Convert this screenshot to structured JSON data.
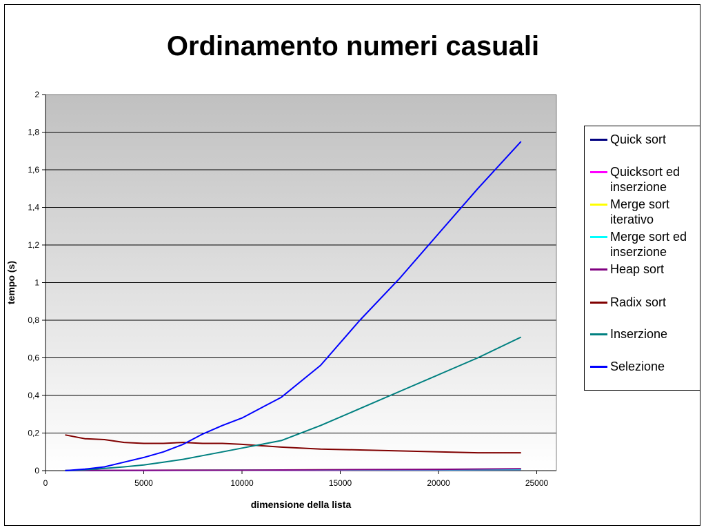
{
  "chart_data": {
    "type": "line",
    "title": "Ordinamento numeri casuali",
    "xlabel": "dimensione della lista",
    "ylabel": "tempo (s)",
    "xlim": [
      0,
      26000
    ],
    "ylim": [
      0,
      2
    ],
    "x_ticks": [
      0,
      5000,
      10000,
      15000,
      20000,
      25000
    ],
    "x_tick_labels": [
      "0",
      "5000",
      "10000",
      "15000",
      "20000",
      "25000"
    ],
    "y_ticks": [
      0,
      0.2,
      0.4,
      0.6,
      0.8,
      1,
      1.2,
      1.4,
      1.6,
      1.8,
      2
    ],
    "y_tick_labels": [
      "0",
      "0,2",
      "0,4",
      "0,6",
      "0,8",
      "1",
      "1,2",
      "1,4",
      "1,6",
      "1,8",
      "2"
    ],
    "grid": "horizontal",
    "legend_position": "right",
    "background": "gray-gradient",
    "series": [
      {
        "name": "Quick sort",
        "color": "#000080",
        "x": [
          1000,
          5000,
          10000,
          15000,
          20000,
          24200
        ],
        "y": [
          0.001,
          0.002,
          0.003,
          0.004,
          0.006,
          0.008
        ]
      },
      {
        "name": "Quicksort ed inserzione",
        "color": "#ff00ff",
        "x": [
          1000,
          5000,
          10000,
          15000,
          20000,
          24200
        ],
        "y": [
          0.0005,
          0.001,
          0.002,
          0.003,
          0.004,
          0.005
        ]
      },
      {
        "name": "Merge sort iterativo",
        "color": "#ffff00",
        "x": [
          1000,
          5000,
          10000,
          15000,
          20000,
          24200
        ],
        "y": [
          0.001,
          0.002,
          0.003,
          0.005,
          0.006,
          0.007
        ]
      },
      {
        "name": "Merge sort ed inserzione",
        "color": "#00ffff",
        "x": [
          1000,
          5000,
          10000,
          15000,
          20000,
          24200
        ],
        "y": [
          0.0008,
          0.0015,
          0.0025,
          0.004,
          0.005,
          0.006
        ]
      },
      {
        "name": "Heap sort",
        "color": "#800080",
        "x": [
          1000,
          5000,
          10000,
          15000,
          20000,
          24200
        ],
        "y": [
          0.001,
          0.002,
          0.003,
          0.005,
          0.007,
          0.01
        ]
      },
      {
        "name": "Radix sort",
        "color": "#800000",
        "x": [
          1000,
          2000,
          3000,
          4000,
          5000,
          6000,
          7000,
          8000,
          9000,
          10000,
          12000,
          14000,
          16000,
          18000,
          20000,
          22000,
          24200
        ],
        "y": [
          0.19,
          0.17,
          0.165,
          0.15,
          0.145,
          0.145,
          0.15,
          0.145,
          0.145,
          0.14,
          0.125,
          0.115,
          0.11,
          0.105,
          0.1,
          0.095,
          0.095
        ]
      },
      {
        "name": "Inserzione",
        "color": "#008080",
        "x": [
          1000,
          2000,
          3000,
          4000,
          5000,
          6000,
          7000,
          8000,
          9000,
          10000,
          12000,
          14000,
          16000,
          18000,
          20000,
          22000,
          24200
        ],
        "y": [
          0.0,
          0.005,
          0.012,
          0.02,
          0.03,
          0.045,
          0.06,
          0.08,
          0.1,
          0.12,
          0.16,
          0.24,
          0.33,
          0.42,
          0.51,
          0.6,
          0.71
        ]
      },
      {
        "name": "Selezione",
        "color": "#0000ff",
        "x": [
          1000,
          2000,
          3000,
          4000,
          5000,
          6000,
          7000,
          8000,
          9000,
          10000,
          12000,
          14000,
          16000,
          18000,
          20000,
          22000,
          24200
        ],
        "y": [
          0.0,
          0.008,
          0.02,
          0.045,
          0.07,
          0.1,
          0.14,
          0.195,
          0.24,
          0.28,
          0.39,
          0.56,
          0.8,
          1.02,
          1.26,
          1.5,
          1.75
        ]
      }
    ]
  }
}
